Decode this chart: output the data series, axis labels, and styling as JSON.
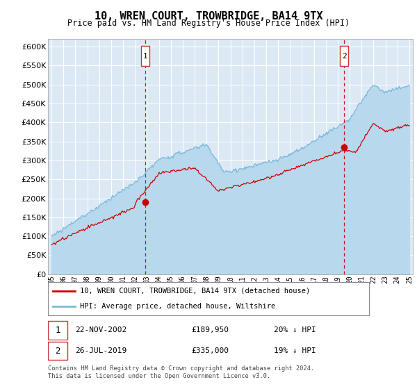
{
  "title": "10, WREN COURT, TROWBRIDGE, BA14 9TX",
  "subtitle": "Price paid vs. HM Land Registry's House Price Index (HPI)",
  "footer": "Contains HM Land Registry data © Crown copyright and database right 2024.\nThis data is licensed under the Open Government Licence v3.0.",
  "legend_line1": "10, WREN COURT, TROWBRIDGE, BA14 9TX (detached house)",
  "legend_line2": "HPI: Average price, detached house, Wiltshire",
  "sale1_date": "22-NOV-2002",
  "sale1_price": "£189,950",
  "sale1_hpi": "20% ↓ HPI",
  "sale2_date": "26-JUL-2019",
  "sale2_price": "£335,000",
  "sale2_hpi": "19% ↓ HPI",
  "sale1_year": 2002.88,
  "sale1_value": 189950,
  "sale2_year": 2019.54,
  "sale2_value": 335000,
  "hpi_color": "#7ab8d9",
  "hpi_fill_color": "#b8d8ed",
  "property_color": "#cc0000",
  "vline_color": "#cc0000",
  "bg_color": "#dce9f5",
  "ylim_max": 620000,
  "ytick_step": 50000,
  "xstart": 1995,
  "xend": 2025
}
